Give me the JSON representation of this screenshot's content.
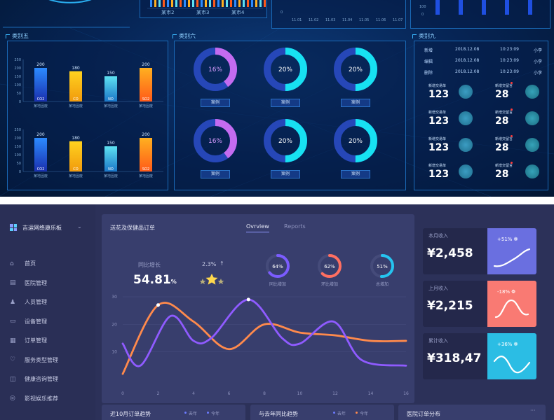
{
  "top": {
    "stub_labels": [
      "某市2",
      "某市3",
      "某市4"
    ],
    "stub_ticks": [
      "11.01",
      "11.02",
      "11.03",
      "11.04",
      "11.05",
      "11.06",
      "11.07"
    ],
    "stub_yticks_mid": [
      "0"
    ],
    "stub_yticks_right": [
      "100",
      "0"
    ],
    "panel5": {
      "title": "类别五",
      "yticks": [
        "250",
        "200",
        "150",
        "100",
        "50",
        "0"
      ],
      "bars": [
        {
          "name": "CO2",
          "value": 200,
          "cat": "某地固废",
          "color_top": "#2c8bff",
          "color_bottom": "#1a2fae"
        },
        {
          "name": "CO",
          "value": 180,
          "cat": "某地固废",
          "color_top": "#ffd21f",
          "color_bottom": "#f19a0d"
        },
        {
          "name": "NO",
          "value": 150,
          "cat": "某地固废",
          "color_top": "#5ee1f2",
          "color_bottom": "#1b76c7"
        },
        {
          "name": "SO2",
          "value": 200,
          "cat": "某地固废",
          "color_top": "#ffb020",
          "color_bottom": "#ff5a19"
        }
      ],
      "chart2_bars": [
        {
          "name": "CO2",
          "value": 200,
          "cat": "某地固废",
          "color_top": "#2c8bff",
          "color_bottom": "#1a2fae"
        },
        {
          "name": "CO",
          "value": 180,
          "cat": "某地固废",
          "color_top": "#ffd21f",
          "color_bottom": "#f19a0d"
        },
        {
          "name": "NO",
          "value": 150,
          "cat": "某地固废",
          "color_top": "#5ee1f2",
          "color_bottom": "#1b76c7"
        },
        {
          "name": "SO2",
          "value": 200,
          "cat": "某地固废",
          "color_top": "#ffb020",
          "color_bottom": "#ff5a19"
        }
      ]
    },
    "panel6": {
      "title": "类别六",
      "donuts": [
        {
          "pct": "16%",
          "value": 16,
          "color": "#c46bf0",
          "label": "案例"
        },
        {
          "pct": "20%",
          "value": 20,
          "color": "#17e1f2",
          "label": "案例"
        },
        {
          "pct": "20%",
          "value": 20,
          "color": "#17e1f2",
          "label": "案例"
        },
        {
          "pct": "16%",
          "value": 16,
          "color": "#c46bf0",
          "label": "案例"
        },
        {
          "pct": "20%",
          "value": 20,
          "color": "#17e1f2",
          "label": "案例"
        },
        {
          "pct": "20%",
          "value": 20,
          "color": "#17e1f2",
          "label": "案例"
        }
      ]
    },
    "panel9": {
      "title": "类别九",
      "rows": [
        {
          "action": "新增",
          "date": "2018.12.08",
          "time": "10:23:09",
          "user": "小李"
        },
        {
          "action": "编辑",
          "date": "2018.12.08",
          "time": "10:23:09",
          "user": "小李"
        },
        {
          "action": "删除",
          "date": "2018.12.08",
          "time": "10:23:09",
          "user": "小李"
        }
      ],
      "stats": [
        {
          "label": "新增交易单",
          "value": "123",
          "label2": "新增交留言",
          "value2": "28"
        },
        {
          "label": "新增交易单",
          "value": "123",
          "label2": "新增交留言",
          "value2": "28"
        },
        {
          "label": "新增交易单",
          "value": "123",
          "label2": "新增交留言",
          "value2": "28"
        },
        {
          "label": "新增交易单",
          "value": "123",
          "label2": "新增交留言",
          "value2": "28"
        }
      ]
    }
  },
  "bottom": {
    "app_title": "吉运网络康乐板",
    "nav": [
      {
        "label": "首页",
        "icon": "home-icon",
        "glyph": "⌂"
      },
      {
        "label": "医院管理",
        "icon": "hospital-icon",
        "glyph": "▤"
      },
      {
        "label": "人员管理",
        "icon": "users-icon",
        "glyph": "♟"
      },
      {
        "label": "设备管理",
        "icon": "monitor-icon",
        "glyph": "▭"
      },
      {
        "label": "订单管理",
        "icon": "order-icon",
        "glyph": "▦"
      },
      {
        "label": "服务类型管理",
        "icon": "heart-icon",
        "glyph": "♡"
      },
      {
        "label": "健康咨询管理",
        "icon": "pulse-icon",
        "glyph": "◫"
      },
      {
        "label": "影视娱乐推荐",
        "icon": "globe-icon",
        "glyph": "◎"
      }
    ],
    "card_title": "送花及保健品订单",
    "tabs": [
      "Ovrview",
      "Reports"
    ],
    "growth_label": "同比增长",
    "growth_value": "54.81",
    "growth_unit": "%",
    "rating_pct": "2.3%",
    "rating_arrow": "↑",
    "stars": 1,
    "rings": [
      {
        "pct": "64%",
        "value": 64,
        "label": "同比增加",
        "color": "#7b5cff"
      },
      {
        "pct": "62%",
        "value": 62,
        "label": "环比增加",
        "color": "#ff6f61"
      },
      {
        "pct": "51%",
        "value": 51,
        "label": "总增加",
        "color": "#25c4f0"
      }
    ],
    "income": [
      {
        "label": "本月收入",
        "amount": "¥2,458",
        "delta": "+51%",
        "color": "#6a6fe0"
      },
      {
        "label": "上月收入",
        "amount": "¥2,215",
        "delta": "-18%",
        "color": "#f97a73"
      },
      {
        "label": "累计收入",
        "amount": "¥318,47",
        "delta": "+36%",
        "color": "#2bbde4"
      }
    ],
    "bottom_panels": [
      {
        "title": "近10月订单趋势",
        "legend": [
          "去年",
          "今年"
        ]
      },
      {
        "title": "与去年同比趋势",
        "legend": [
          "去年",
          "今年"
        ]
      },
      {
        "title": "医院订单分布",
        "legend": []
      }
    ]
  },
  "chart_data": {
    "type": "line",
    "xlim": [
      0,
      16
    ],
    "ylim": [
      0,
      30
    ],
    "x_ticks": [
      "0",
      "2",
      "4",
      "6",
      "8",
      "10",
      "12",
      "14",
      "16"
    ],
    "y_ticks": [
      "30",
      "20",
      "10"
    ],
    "series": [
      {
        "color": "#ff8a4c",
        "points": [
          [
            0,
            2
          ],
          [
            2,
            27
          ],
          [
            4,
            21
          ],
          [
            6,
            11
          ],
          [
            8,
            20
          ],
          [
            10,
            17
          ],
          [
            12,
            16
          ],
          [
            14,
            14
          ],
          [
            16,
            14
          ]
        ]
      },
      {
        "color": "#8f5bff",
        "points": [
          [
            0,
            13
          ],
          [
            1,
            5
          ],
          [
            2.7,
            23
          ],
          [
            4,
            14
          ],
          [
            5,
            15
          ],
          [
            7.1,
            29
          ],
          [
            9,
            15
          ],
          [
            10,
            13
          ],
          [
            11.9,
            21
          ],
          [
            13.5,
            7
          ],
          [
            16,
            5
          ]
        ]
      }
    ]
  }
}
